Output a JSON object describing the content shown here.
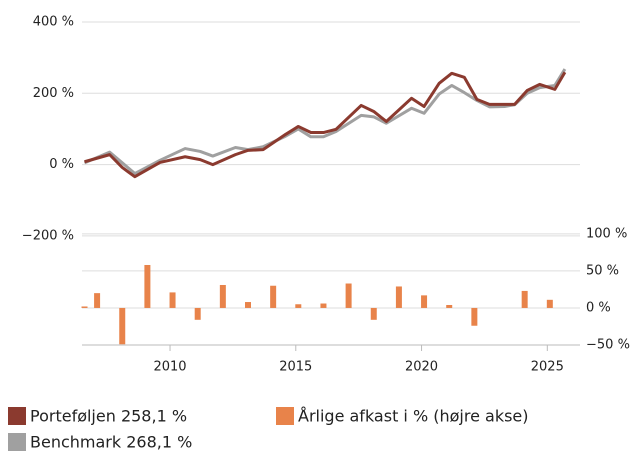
{
  "chart_data": {
    "type": "line",
    "ylim": [
      -506,
      400
    ],
    "yticks": [
      {
        "value": 400,
        "label": "400 %"
      },
      {
        "value": 200,
        "label": "200 %"
      },
      {
        "value": 0,
        "label": "0 %"
      },
      {
        "value": -200,
        "label": "−200 %"
      }
    ],
    "y2lim": [
      -50,
      386
    ],
    "y2ticks": [
      {
        "value": 100,
        "label": "100 %"
      },
      {
        "value": 50,
        "label": "50 %"
      },
      {
        "value": 0,
        "label": "0 %"
      },
      {
        "value": -50,
        "label": "−50 %"
      }
    ],
    "xlim": [
      2006.5,
      2026.3
    ],
    "xticks": [
      2010,
      2015,
      2020,
      2025
    ],
    "grid": true,
    "legend": "bottom",
    "series": [
      {
        "name": "Porteføljen 258,1 %",
        "type": "line",
        "color": "#8b3a2f",
        "x": [
          2006.6,
          2007.6,
          2008.1,
          2008.6,
          2009.6,
          2010.6,
          2011.2,
          2011.7,
          2012.6,
          2013.1,
          2013.7,
          2014.6,
          2015.1,
          2015.6,
          2016.1,
          2016.6,
          2017.6,
          2018.1,
          2018.6,
          2019.6,
          2020.1,
          2020.7,
          2021.2,
          2021.7,
          2022.2,
          2022.7,
          2023.3,
          2023.7,
          2024.2,
          2024.7,
          2025.3,
          2025.7
        ],
        "values": [
          8,
          28,
          -8,
          -34,
          6,
          22,
          14,
          0,
          28,
          40,
          42,
          85,
          107,
          90,
          90,
          99,
          166,
          149,
          121,
          186,
          163,
          228,
          256,
          245,
          183,
          169,
          169,
          169,
          208,
          225,
          211,
          259
        ]
      },
      {
        "name": "Benchmark 268,1 %",
        "type": "line",
        "color": "#a0a0a0",
        "x": [
          2006.6,
          2007.6,
          2008.1,
          2008.6,
          2009.6,
          2010.6,
          2011.2,
          2011.7,
          2012.6,
          2013.1,
          2013.7,
          2014.6,
          2015.1,
          2015.6,
          2016.1,
          2016.6,
          2017.6,
          2018.1,
          2018.6,
          2019.6,
          2020.1,
          2020.7,
          2021.2,
          2021.7,
          2022.2,
          2022.7,
          2023.3,
          2023.7,
          2024.2,
          2024.7,
          2025.3,
          2025.7
        ],
        "values": [
          5,
          35,
          5,
          -25,
          12,
          45,
          37,
          24,
          48,
          42,
          50,
          80,
          100,
          78,
          78,
          93,
          138,
          134,
          116,
          158,
          144,
          198,
          222,
          202,
          180,
          162,
          163,
          168,
          200,
          216,
          222,
          268
        ]
      },
      {
        "name": "Årlige afkast i % (højre akse)",
        "type": "bar",
        "axis": "y2",
        "color": "#e8834a",
        "x": [
          2006.6,
          2007.1,
          2008.1,
          2009.1,
          2010.1,
          2011.1,
          2012.1,
          2013.1,
          2014.1,
          2015.1,
          2016.1,
          2017.1,
          2018.1,
          2019.1,
          2020.1,
          2021.1,
          2022.1,
          2024.1,
          2025.1
        ],
        "values": [
          2,
          20,
          -49,
          58,
          21,
          -16,
          31,
          8,
          30,
          5,
          6,
          33,
          -16,
          29,
          17,
          4,
          -24,
          23,
          11
        ]
      }
    ]
  }
}
